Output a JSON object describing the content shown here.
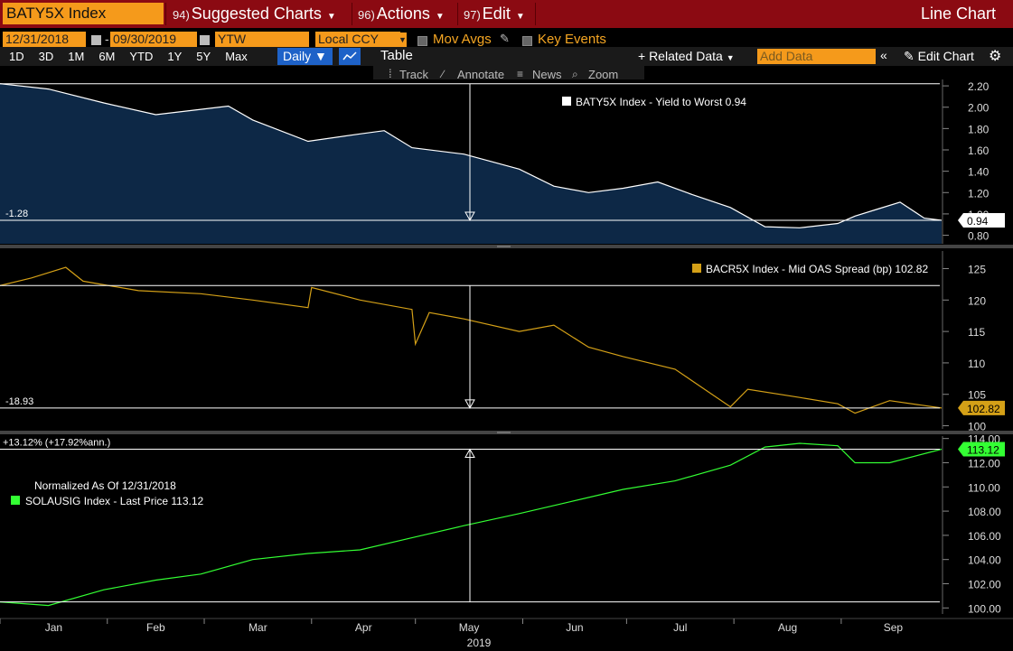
{
  "header": {
    "ticker": "BATY5X Index",
    "menu": [
      {
        "num": "94)",
        "label": "Suggested Charts"
      },
      {
        "num": "96)",
        "label": "Actions"
      },
      {
        "num": "97)",
        "label": "Edit"
      }
    ],
    "chart_type": "Line Chart"
  },
  "controls": {
    "start_date": "12/31/2018",
    "date_sep": "-",
    "end_date": "09/30/2019",
    "field": "YTW",
    "currency": "Local CCY",
    "mov_avgs": "Mov Avgs",
    "key_events": "Key Events",
    "periods": [
      "1D",
      "3D",
      "1M",
      "6M",
      "YTD",
      "1Y",
      "5Y",
      "Max"
    ],
    "frequency": "Daily",
    "table": "Table",
    "related_data": "+ Related Data",
    "add_data": "Add Data",
    "edit_chart": "Edit Chart",
    "tools": [
      "Track",
      "Annotate",
      "News",
      "Zoom"
    ]
  },
  "colors": {
    "panel1_fill": "#0d2846",
    "panel1_line": "#ffffff",
    "panel2_line": "#d4a017",
    "panel3_line": "#33ff33",
    "header_bg": "#8b0a12",
    "accent_orange": "#f59a1b"
  },
  "chart_data": [
    {
      "type": "area",
      "legend": "BATY5X Index - Yield to Worst 0.94",
      "last_value_label": "0.94",
      "change_label": "-1.28",
      "ylim": [
        0.72,
        2.26
      ],
      "yticks": [
        "2.20",
        "2.00",
        "1.80",
        "1.60",
        "1.40",
        "1.20",
        "1.00",
        "0.80"
      ],
      "x": [
        "2019-01-01",
        "2019-01-15",
        "2019-01-31",
        "2019-02-15",
        "2019-02-28",
        "2019-03-08",
        "2019-03-15",
        "2019-03-31",
        "2019-04-15",
        "2019-04-22",
        "2019-04-30",
        "2019-05-15",
        "2019-05-31",
        "2019-06-10",
        "2019-06-20",
        "2019-06-30",
        "2019-07-10",
        "2019-07-20",
        "2019-07-31",
        "2019-08-10",
        "2019-08-20",
        "2019-08-31",
        "2019-09-05",
        "2019-09-12",
        "2019-09-18",
        "2019-09-25",
        "2019-09-30"
      ],
      "values": [
        2.22,
        2.17,
        2.04,
        1.93,
        1.98,
        2.01,
        1.88,
        1.68,
        1.75,
        1.78,
        1.62,
        1.56,
        1.42,
        1.26,
        1.2,
        1.24,
        1.3,
        1.18,
        1.06,
        0.88,
        0.87,
        0.91,
        0.98,
        1.05,
        1.11,
        0.96,
        0.94
      ]
    },
    {
      "type": "line",
      "legend": "BACR5X Index - Mid OAS Spread (bp) 102.82",
      "last_value_label": "102.82",
      "change_label": "-18.93",
      "ylim": [
        99.5,
        127.8
      ],
      "yticks": [
        "125",
        "120",
        "115",
        "110",
        "105",
        "100"
      ],
      "x": [
        "2019-01-01",
        "2019-01-10",
        "2019-01-20",
        "2019-01-25",
        "2019-02-10",
        "2019-02-28",
        "2019-03-15",
        "2019-03-31",
        "2019-04-01",
        "2019-04-15",
        "2019-04-30",
        "2019-05-01",
        "2019-05-05",
        "2019-05-15",
        "2019-05-31",
        "2019-06-10",
        "2019-06-20",
        "2019-06-30",
        "2019-07-15",
        "2019-07-31",
        "2019-08-05",
        "2019-08-20",
        "2019-08-31",
        "2019-09-05",
        "2019-09-15",
        "2019-09-30"
      ],
      "values": [
        122.3,
        123.5,
        125.2,
        123.0,
        121.5,
        121.0,
        120.0,
        118.8,
        122.0,
        120.0,
        118.5,
        113.0,
        118.0,
        117.0,
        115.0,
        116.0,
        112.5,
        111.0,
        109.0,
        103.0,
        105.8,
        104.5,
        103.5,
        102.0,
        104.0,
        102.82
      ]
    },
    {
      "type": "line",
      "legend": "SOLAUSIG Index - Last Price 113.12",
      "note": "Normalized As Of 12/31/2018",
      "last_value_label": "113.12",
      "change_label": "+13.12% (+17.92%ann.)",
      "ylim": [
        99.5,
        114.2
      ],
      "yticks": [
        "114.00",
        "112.00",
        "110.00",
        "108.00",
        "106.00",
        "104.00",
        "102.00",
        "100.00"
      ],
      "x": [
        "2019-01-01",
        "2019-01-15",
        "2019-01-31",
        "2019-02-15",
        "2019-02-28",
        "2019-03-15",
        "2019-03-31",
        "2019-04-15",
        "2019-04-30",
        "2019-05-15",
        "2019-05-31",
        "2019-06-15",
        "2019-06-30",
        "2019-07-15",
        "2019-07-31",
        "2019-08-10",
        "2019-08-20",
        "2019-08-31",
        "2019-09-05",
        "2019-09-15",
        "2019-09-30"
      ],
      "values": [
        100.5,
        100.2,
        101.5,
        102.3,
        102.8,
        104.0,
        104.5,
        104.8,
        105.8,
        106.8,
        107.8,
        108.8,
        109.8,
        110.5,
        111.8,
        113.3,
        113.6,
        113.4,
        112.0,
        112.0,
        113.12
      ]
    }
  ],
  "x_axis": {
    "months": [
      "Jan",
      "Feb",
      "Mar",
      "Apr",
      "May",
      "Jun",
      "Jul",
      "Aug",
      "Sep"
    ],
    "year": "2019"
  }
}
